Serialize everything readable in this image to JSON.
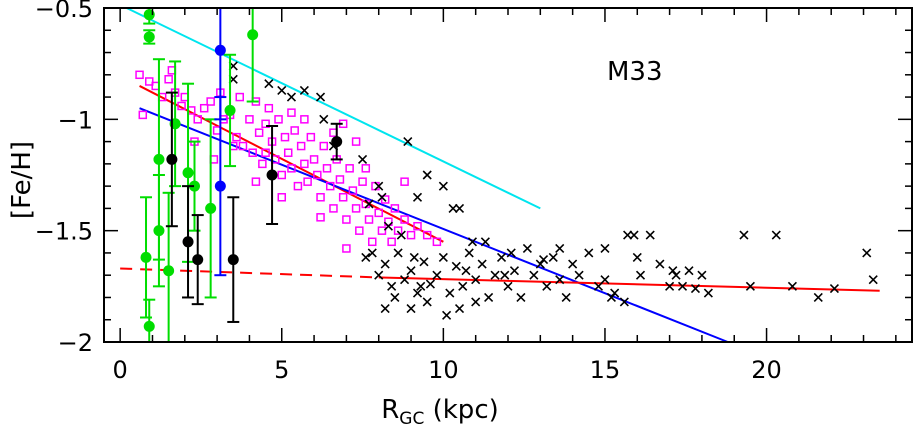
{
  "chart_data": {
    "type": "scatter",
    "title": "",
    "annotation": "M33",
    "xlabel": {
      "main": "R",
      "sub": "GC",
      "unit": " (kpc)"
    },
    "ylabel": "[Fe/H]",
    "xlim": [
      -0.5,
      24.5
    ],
    "ylim": [
      -2.0,
      -0.5
    ],
    "xticks": [
      0,
      5,
      10,
      15,
      20
    ],
    "yticks": [
      -2,
      -1.5,
      -1,
      -0.5
    ],
    "ytick_labels": [
      "−2",
      "−1.5",
      "−1",
      "−0.5"
    ],
    "grid": false,
    "legend": "none",
    "colors": {
      "magenta": "#ff00ff",
      "black": "#000000",
      "green": "#00dd00",
      "blue": "#0000ff",
      "cyan": "#00e5ee",
      "red": "#ff0000"
    },
    "series": [
      {
        "marker": "open-square",
        "color": "#ff00ff",
        "points": [
          [
            0.6,
            -0.8
          ],
          [
            0.7,
            -0.98
          ],
          [
            0.9,
            -0.83
          ],
          [
            1.1,
            -0.85
          ],
          [
            1.3,
            -0.9
          ],
          [
            1.5,
            -0.82
          ],
          [
            1.7,
            -0.88
          ],
          [
            1.9,
            -0.94
          ],
          [
            2.0,
            -0.9
          ],
          [
            2.2,
            -0.96
          ],
          [
            2.4,
            -1.0
          ],
          [
            2.6,
            -0.95
          ],
          [
            2.8,
            -0.92
          ],
          [
            3.0,
            -1.05
          ],
          [
            3.2,
            -1.0
          ],
          [
            3.4,
            -0.98
          ],
          [
            3.6,
            -1.08
          ],
          [
            3.7,
            -0.9
          ],
          [
            3.8,
            -1.12
          ],
          [
            4.0,
            -1.0
          ],
          [
            4.1,
            -1.15
          ],
          [
            4.2,
            -0.92
          ],
          [
            4.3,
            -1.06
          ],
          [
            4.4,
            -1.2
          ],
          [
            4.5,
            -1.02
          ],
          [
            4.6,
            -0.95
          ],
          [
            4.7,
            -1.1
          ],
          [
            4.8,
            -1.18
          ],
          [
            4.9,
            -1.0
          ],
          [
            5.0,
            -1.25
          ],
          [
            5.1,
            -1.08
          ],
          [
            5.2,
            -1.15
          ],
          [
            5.3,
            -1.22
          ],
          [
            5.4,
            -1.05
          ],
          [
            5.5,
            -1.3
          ],
          [
            5.6,
            -1.12
          ],
          [
            5.7,
            -1.2
          ],
          [
            5.8,
            -1.28
          ],
          [
            5.9,
            -1.08
          ],
          [
            6.0,
            -1.18
          ],
          [
            6.1,
            -1.25
          ],
          [
            6.2,
            -1.35
          ],
          [
            6.3,
            -1.12
          ],
          [
            6.4,
            -1.22
          ],
          [
            6.5,
            -1.3
          ],
          [
            6.6,
            -1.4
          ],
          [
            6.7,
            -1.18
          ],
          [
            6.8,
            -1.27
          ],
          [
            6.9,
            -1.35
          ],
          [
            7.0,
            -1.45
          ],
          [
            7.1,
            -1.22
          ],
          [
            7.2,
            -1.32
          ],
          [
            7.3,
            -1.4
          ],
          [
            7.4,
            -1.5
          ],
          [
            7.5,
            -1.28
          ],
          [
            7.6,
            -1.38
          ],
          [
            7.7,
            -1.45
          ],
          [
            7.8,
            -1.55
          ],
          [
            7.9,
            -1.3
          ],
          [
            8.0,
            -1.42
          ],
          [
            8.1,
            -1.5
          ],
          [
            8.2,
            -1.36
          ],
          [
            8.3,
            -1.46
          ],
          [
            8.4,
            -1.55
          ],
          [
            8.5,
            -1.4
          ],
          [
            8.6,
            -1.5
          ],
          [
            8.8,
            -1.45
          ],
          [
            9.0,
            -1.52
          ],
          [
            9.2,
            -1.48
          ],
          [
            9.5,
            -1.52
          ],
          [
            9.8,
            -1.55
          ],
          [
            5.3,
            -0.97
          ],
          [
            6.6,
            -1.06
          ],
          [
            7.3,
            -1.1
          ],
          [
            3.5,
            -1.12
          ],
          [
            2.9,
            -1.18
          ],
          [
            4.2,
            -1.28
          ],
          [
            5.0,
            -1.35
          ],
          [
            6.2,
            -1.44
          ],
          [
            7.0,
            -1.58
          ],
          [
            1.6,
            -0.78
          ],
          [
            2.3,
            -1.1
          ],
          [
            3.1,
            -0.88
          ],
          [
            8.8,
            -1.28
          ],
          [
            7.6,
            -1.22
          ],
          [
            6.9,
            -1.02
          ],
          [
            5.7,
            -1.0
          ],
          [
            4.5,
            -1.15
          ]
        ]
      },
      {
        "marker": "cross",
        "color": "#000000",
        "points": [
          [
            3.5,
            -0.76
          ],
          [
            3.5,
            -0.82
          ],
          [
            4.6,
            -0.84
          ],
          [
            5.0,
            -0.87
          ],
          [
            5.3,
            -0.9
          ],
          [
            5.7,
            -0.87
          ],
          [
            6.2,
            -0.9
          ],
          [
            6.3,
            -1.0
          ],
          [
            6.6,
            -1.12
          ],
          [
            7.5,
            -1.18
          ],
          [
            7.7,
            -1.38
          ],
          [
            8.0,
            -1.3
          ],
          [
            8.1,
            -1.35
          ],
          [
            8.3,
            -1.48
          ],
          [
            8.7,
            -1.52
          ],
          [
            8.9,
            -1.1
          ],
          [
            9.2,
            -1.35
          ],
          [
            9.5,
            -1.25
          ],
          [
            10.0,
            -1.3
          ],
          [
            10.3,
            -1.4
          ],
          [
            10.5,
            -1.4
          ],
          [
            7.6,
            -1.62
          ],
          [
            7.8,
            -1.6
          ],
          [
            8.0,
            -1.7
          ],
          [
            8.2,
            -1.65
          ],
          [
            8.4,
            -1.75
          ],
          [
            8.6,
            -1.6
          ],
          [
            8.8,
            -1.72
          ],
          [
            9.0,
            -1.68
          ],
          [
            9.2,
            -1.78
          ],
          [
            9.4,
            -1.64
          ],
          [
            9.6,
            -1.74
          ],
          [
            9.8,
            -1.7
          ],
          [
            10.0,
            -1.62
          ],
          [
            10.2,
            -1.78
          ],
          [
            10.4,
            -1.66
          ],
          [
            10.6,
            -1.75
          ],
          [
            10.8,
            -1.6
          ],
          [
            11.0,
            -1.72
          ],
          [
            11.2,
            -1.65
          ],
          [
            11.4,
            -1.8
          ],
          [
            11.6,
            -1.7
          ],
          [
            11.8,
            -1.62
          ],
          [
            12.0,
            -1.75
          ],
          [
            12.2,
            -1.68
          ],
          [
            12.4,
            -1.8
          ],
          [
            12.6,
            -1.58
          ],
          [
            12.8,
            -1.7
          ],
          [
            13.0,
            -1.65
          ],
          [
            13.2,
            -1.75
          ],
          [
            13.4,
            -1.62
          ],
          [
            13.6,
            -1.72
          ],
          [
            13.8,
            -1.8
          ],
          [
            14.0,
            -1.65
          ],
          [
            14.2,
            -1.7
          ],
          [
            14.5,
            -1.6
          ],
          [
            14.8,
            -1.75
          ],
          [
            15.0,
            -1.72
          ],
          [
            15.3,
            -1.78
          ],
          [
            15.6,
            -1.82
          ],
          [
            15.7,
            -1.52
          ],
          [
            15.9,
            -1.52
          ],
          [
            16.1,
            -1.7
          ],
          [
            16.4,
            -1.52
          ],
          [
            16.7,
            -1.65
          ],
          [
            17.0,
            -1.75
          ],
          [
            17.2,
            -1.7
          ],
          [
            17.4,
            -1.75
          ],
          [
            17.6,
            -1.68
          ],
          [
            17.8,
            -1.76
          ],
          [
            18.0,
            -1.7
          ],
          [
            18.2,
            -1.78
          ],
          [
            19.3,
            -1.52
          ],
          [
            19.5,
            -1.75
          ],
          [
            20.3,
            -1.52
          ],
          [
            20.8,
            -1.75
          ],
          [
            21.6,
            -1.8
          ],
          [
            22.1,
            -1.76
          ],
          [
            23.1,
            -1.6
          ],
          [
            23.3,
            -1.72
          ],
          [
            8.5,
            -1.8
          ],
          [
            9.0,
            -1.85
          ],
          [
            9.5,
            -1.82
          ],
          [
            10.1,
            -1.88
          ],
          [
            10.5,
            -1.85
          ],
          [
            11.0,
            -1.82
          ],
          [
            8.2,
            -1.85
          ],
          [
            9.3,
            -1.75
          ],
          [
            10.9,
            -1.55
          ],
          [
            11.3,
            -1.55
          ],
          [
            12.1,
            -1.6
          ],
          [
            13.6,
            -1.58
          ],
          [
            15.0,
            -1.58
          ],
          [
            16.0,
            -1.62
          ],
          [
            17.1,
            -1.68
          ],
          [
            15.2,
            -1.8
          ],
          [
            13.1,
            -1.63
          ],
          [
            11.9,
            -1.7
          ],
          [
            10.7,
            -1.68
          ],
          [
            9.1,
            -1.62
          ]
        ]
      },
      {
        "marker": "filled-circle",
        "color": "#00dd00",
        "points": [
          {
            "x": 0.9,
            "y": -0.53,
            "err": 0.04
          },
          {
            "x": 0.9,
            "y": -0.63,
            "err": 0.03
          },
          {
            "x": 0.8,
            "y": -1.62,
            "err": 0.27
          },
          {
            "x": 0.9,
            "y": -1.93,
            "err": 0.12
          },
          {
            "x": 1.2,
            "y": -1.18,
            "err": 0.45
          },
          {
            "x": 1.2,
            "y": -1.5,
            "err": 0.25
          },
          {
            "x": 1.5,
            "y": -1.68,
            "err": 0.35
          },
          {
            "x": 1.7,
            "y": -1.02,
            "err": 0.28
          },
          {
            "x": 2.1,
            "y": -1.24,
            "err": 0.4
          },
          {
            "x": 2.3,
            "y": -1.3,
            "err": 0.2
          },
          {
            "x": 2.8,
            "y": -1.4,
            "err": 0.4
          },
          {
            "x": 3.4,
            "y": -0.96,
            "err": 0.25
          },
          {
            "x": 4.1,
            "y": -0.62,
            "err": 0.3
          }
        ]
      },
      {
        "marker": "filled-circle",
        "color": "#000000",
        "points": [
          {
            "x": 1.6,
            "y": -1.18,
            "err": 0.3
          },
          {
            "x": 2.1,
            "y": -1.55,
            "err": 0.25
          },
          {
            "x": 2.4,
            "y": -1.63,
            "err": 0.2
          },
          {
            "x": 3.5,
            "y": -1.63,
            "err": 0.28
          },
          {
            "x": 4.7,
            "y": -1.25,
            "err": 0.22
          },
          {
            "x": 6.7,
            "y": -1.1,
            "err": 0.08
          }
        ]
      },
      {
        "marker": "filled-circle",
        "color": "#0000ff",
        "points": [
          {
            "x": 3.1,
            "y": -0.69,
            "err": 0.31
          },
          {
            "x": 3.1,
            "y": -1.3,
            "err": 0.4
          }
        ]
      }
    ],
    "lines": [
      {
        "color": "#00e5ee",
        "style": "solid",
        "from": [
          0.2,
          -0.5
        ],
        "to": [
          13.0,
          -1.4
        ]
      },
      {
        "color": "#ff0000",
        "style": "solid",
        "from": [
          0.6,
          -0.85
        ],
        "to": [
          10.0,
          -1.55
        ]
      },
      {
        "color": "#0000ff",
        "style": "solid",
        "from": [
          0.6,
          -0.95
        ],
        "to": [
          18.8,
          -2.0
        ]
      },
      {
        "color": "#ff0000",
        "style": "dashed",
        "from": [
          0.0,
          -1.67
        ],
        "to": [
          8.0,
          -1.71
        ]
      },
      {
        "color": "#ff0000",
        "style": "solid",
        "from": [
          8.0,
          -1.71
        ],
        "to": [
          23.5,
          -1.77
        ]
      }
    ]
  }
}
